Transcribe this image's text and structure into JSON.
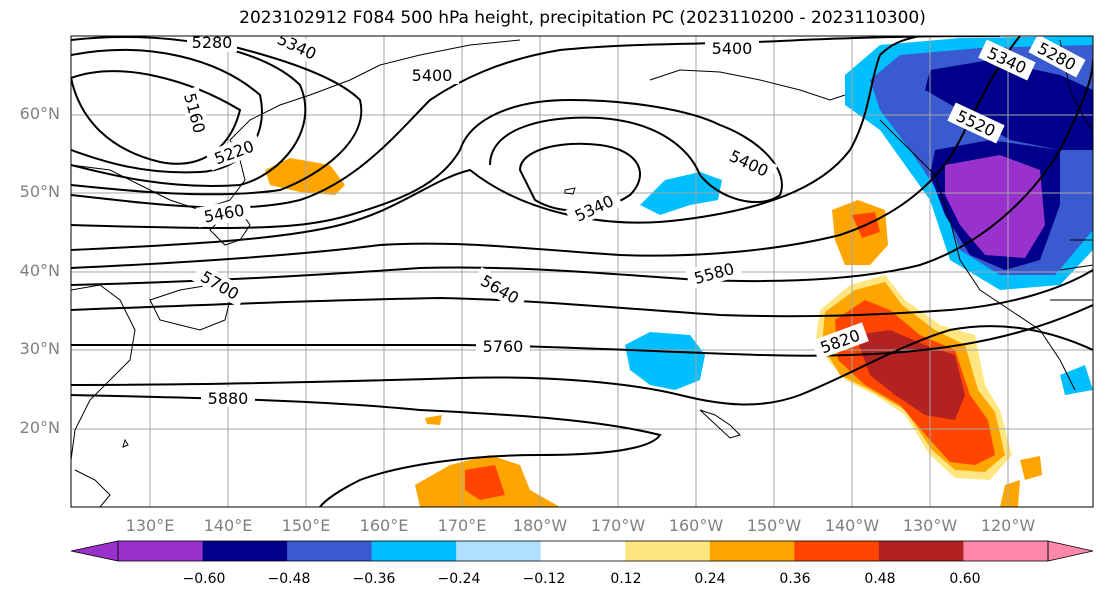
{
  "title": "2023102912 F084 500 hPa height, precipitation PC (2023110200 - 2023110300)",
  "lat_labels": [
    "60°N",
    "50°N",
    "40°N",
    "30°N",
    "20°N"
  ],
  "lon_labels": [
    "130°E",
    "140°E",
    "150°E",
    "160°E",
    "170°E",
    "180°W",
    "170°W",
    "160°W",
    "150°W",
    "140°W",
    "130°W",
    "120°W"
  ],
  "contour_labels": [
    "5280",
    "5340",
    "5400",
    "5160",
    "5220",
    "5400",
    "5280",
    "5340",
    "5520",
    "5400",
    "5340",
    "5460",
    "5700",
    "5640",
    "5580",
    "5760",
    "5820",
    "5880"
  ],
  "colorbar": {
    "colors": [
      "#9932cc",
      "#00008b",
      "#3a5bd0",
      "#00bfff",
      "#b0e0ff",
      "#ffffff",
      "#ffe680",
      "#ffa500",
      "#ff4500",
      "#b22222",
      "#ff88aa"
    ],
    "tick_labels": [
      "−0.60",
      "−0.48",
      "−0.36",
      "−0.24",
      "−0.12",
      "0.12",
      "0.24",
      "0.36",
      "0.48",
      "0.60"
    ]
  },
  "chart_data": {
    "type": "map",
    "title": "2023102912 F084 500 hPa height, precipitation PC (2023110200 - 2023110300)",
    "projection": "equirectangular",
    "lon_range": [
      120,
      251
    ],
    "lat_range": [
      10,
      70
    ],
    "height_contours_m": [
      5160,
      5220,
      5280,
      5340,
      5400,
      5460,
      5520,
      5580,
      5640,
      5700,
      5760,
      5820,
      5880
    ],
    "colorbar_levels": [
      -0.6,
      -0.48,
      -0.36,
      -0.24,
      -0.12,
      0.12,
      0.24,
      0.36,
      0.48,
      0.6
    ]
  }
}
